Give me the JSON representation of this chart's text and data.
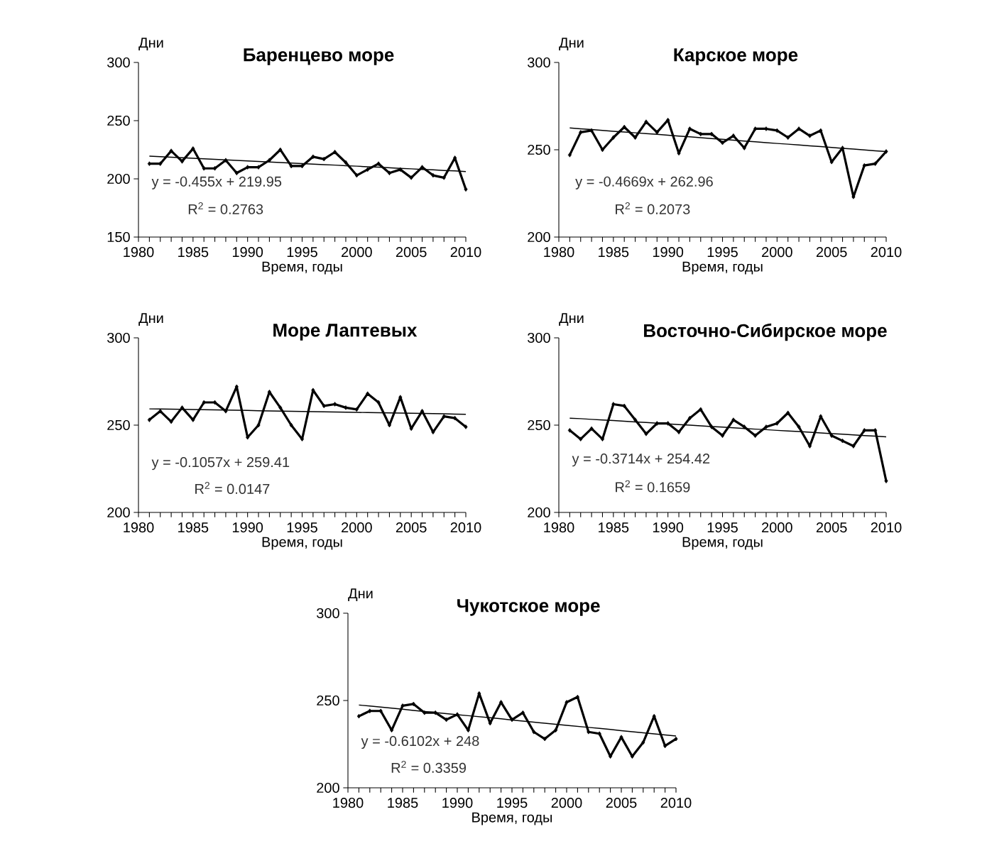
{
  "chart_data": [
    {
      "type": "line",
      "title": "Баренцево море",
      "ylabel": "Дни",
      "xlabel": "Время, годы",
      "marker": "diamond",
      "x": [
        1981,
        1982,
        1983,
        1984,
        1985,
        1986,
        1987,
        1988,
        1989,
        1990,
        1991,
        1992,
        1993,
        1994,
        1995,
        1996,
        1997,
        1998,
        1999,
        2000,
        2001,
        2002,
        2003,
        2004,
        2005,
        2006,
        2007,
        2008,
        2009,
        2010
      ],
      "series": [
        {
          "color": "#000000",
          "values": [
            213,
            213,
            224,
            215,
            226,
            209,
            209,
            216,
            205,
            210,
            210,
            216,
            225,
            211,
            211,
            219,
            217,
            223,
            214,
            203,
            208,
            213,
            205,
            208,
            201,
            210,
            203,
            201,
            218,
            191
          ]
        },
        {
          "type": "line",
          "color": "#000000",
          "marker": "none",
          "values": [
            219.5,
            219.0,
            218.6,
            218.1,
            217.7,
            217.2,
            216.8,
            216.3,
            215.9,
            215.4,
            214.9,
            214.5,
            214.0,
            213.6,
            213.1,
            212.7,
            212.2,
            211.8,
            211.3,
            210.9,
            210.4,
            210.0,
            209.5,
            209.0,
            208.6,
            208.1,
            207.7,
            207.2,
            206.8,
            206.3
          ]
        }
      ],
      "annotations": [
        "y = -0.455x  + 219.95",
        "R$^{2}$ = 0.2763"
      ],
      "xlim": [
        1980,
        2010
      ],
      "ylim": [
        150,
        300
      ],
      "yticks": [
        150,
        200,
        250,
        300
      ],
      "xticks": [
        1980,
        {
          "value": 1981,
          "label": null
        },
        {
          "value": 1982,
          "label": null
        },
        {
          "value": 1983,
          "label": null
        },
        {
          "value": 1984,
          "label": null
        },
        1985,
        {
          "value": 1986,
          "label": null
        },
        {
          "value": 1987,
          "label": null
        },
        {
          "value": 1988,
          "label": null
        },
        {
          "value": 1989,
          "label": null
        },
        1990,
        {
          "value": 1991,
          "label": null
        },
        {
          "value": 1992,
          "label": null
        },
        {
          "value": 1993,
          "label": null
        },
        {
          "value": 1994,
          "label": null
        },
        1995,
        {
          "value": 1996,
          "label": null
        },
        {
          "value": 1997,
          "label": null
        },
        {
          "value": 1998,
          "label": null
        },
        {
          "value": 1999,
          "label": null
        },
        2000,
        {
          "value": 2001,
          "label": null
        },
        {
          "value": 2002,
          "label": null
        },
        {
          "value": 2003,
          "label": null
        },
        {
          "value": 2004,
          "label": null
        },
        2005,
        {
          "value": 2006,
          "label": null
        },
        {
          "value": 2007,
          "label": null
        },
        {
          "value": 2008,
          "label": null
        },
        {
          "value": 2009,
          "label": null
        },
        2010
      ]
    },
    {
      "type": "line",
      "title": "Карское море",
      "ylabel": "Дни",
      "xlabel": "Время, годы",
      "marker": "diamond",
      "x": [
        1981,
        1982,
        1983,
        1984,
        1985,
        1986,
        1987,
        1988,
        1989,
        1990,
        1991,
        1992,
        1993,
        1994,
        1995,
        1996,
        1997,
        1998,
        1999,
        2000,
        2001,
        2002,
        2003,
        2004,
        2005,
        2006,
        2007,
        2008,
        2009,
        2010
      ],
      "series": [
        {
          "color": "#000000",
          "values": [
            247,
            260,
            261,
            250,
            257,
            263,
            257,
            266,
            260,
            267,
            248,
            262,
            259,
            259,
            254,
            258,
            251,
            262,
            262,
            261,
            257,
            262,
            258,
            261,
            243,
            251,
            223,
            241,
            242,
            249
          ]
        },
        {
          "type": "line",
          "color": "#000000",
          "marker": "none",
          "values": [
            262.5,
            262.0,
            261.6,
            261.1,
            260.6,
            260.2,
            259.7,
            259.2,
            258.8,
            258.3,
            257.8,
            257.4,
            256.9,
            256.4,
            256.0,
            255.5,
            255.0,
            254.6,
            254.1,
            253.6,
            253.2,
            252.7,
            252.2,
            251.8,
            251.3,
            250.8,
            250.4,
            249.9,
            249.4,
            249.0
          ]
        }
      ],
      "annotations": [
        "y = -0.4669x  + 262.96",
        "R$^{2}$ = 0.2073"
      ],
      "xlim": [
        1980,
        2010
      ],
      "ylim": [
        200,
        300
      ],
      "yticks": [
        200,
        250,
        300
      ],
      "xticks": [
        1980,
        {
          "value": 1981,
          "label": null
        },
        {
          "value": 1982,
          "label": null
        },
        {
          "value": 1983,
          "label": null
        },
        {
          "value": 1984,
          "label": null
        },
        1985,
        {
          "value": 1986,
          "label": null
        },
        {
          "value": 1987,
          "label": null
        },
        {
          "value": 1988,
          "label": null
        },
        {
          "value": 1989,
          "label": null
        },
        1990,
        {
          "value": 1991,
          "label": null
        },
        {
          "value": 1992,
          "label": null
        },
        {
          "value": 1993,
          "label": null
        },
        {
          "value": 1994,
          "label": null
        },
        1995,
        {
          "value": 1996,
          "label": null
        },
        {
          "value": 1997,
          "label": null
        },
        {
          "value": 1998,
          "label": null
        },
        {
          "value": 1999,
          "label": null
        },
        2000,
        {
          "value": 2001,
          "label": null
        },
        {
          "value": 2002,
          "label": null
        },
        {
          "value": 2003,
          "label": null
        },
        {
          "value": 2004,
          "label": null
        },
        2005,
        {
          "value": 2006,
          "label": null
        },
        {
          "value": 2007,
          "label": null
        },
        {
          "value": 2008,
          "label": null
        },
        {
          "value": 2009,
          "label": null
        },
        2010
      ]
    },
    {
      "type": "line",
      "title": "Море Лаптевых",
      "ylabel": "Дни",
      "xlabel": "Время, годы",
      "marker": "diamond",
      "x": [
        1981,
        1982,
        1983,
        1984,
        1985,
        1986,
        1987,
        1988,
        1989,
        1990,
        1991,
        1992,
        1993,
        1994,
        1995,
        1996,
        1997,
        1998,
        1999,
        2000,
        2001,
        2002,
        2003,
        2004,
        2005,
        2006,
        2007,
        2008,
        2009,
        2010
      ],
      "series": [
        {
          "color": "#000000",
          "values": [
            253,
            258,
            252,
            260,
            253,
            263,
            263,
            258,
            272,
            243,
            250,
            269,
            260,
            250,
            242,
            270,
            261,
            262,
            260,
            259,
            268,
            263,
            250,
            266,
            248,
            258,
            246,
            255,
            254,
            249
          ]
        },
        {
          "type": "line",
          "color": "#000000",
          "marker": "none",
          "values": [
            259.3,
            259.2,
            259.1,
            259.0,
            258.9,
            258.8,
            258.7,
            258.6,
            258.5,
            258.4,
            258.2,
            258.1,
            258.0,
            257.9,
            257.8,
            257.7,
            257.6,
            257.5,
            257.4,
            257.3,
            257.2,
            257.1,
            257.0,
            256.9,
            256.8,
            256.7,
            256.6,
            256.5,
            256.3,
            256.2
          ]
        }
      ],
      "annotations": [
        "y = -0.1057x  + 259.41",
        "R$^{2}$ = 0.0147"
      ],
      "xlim": [
        1980,
        2010
      ],
      "ylim": [
        200,
        300
      ],
      "yticks": [
        200,
        250,
        300
      ],
      "xticks": [
        1980,
        {
          "value": 1981,
          "label": null
        },
        {
          "value": 1982,
          "label": null
        },
        {
          "value": 1983,
          "label": null
        },
        {
          "value": 1984,
          "label": null
        },
        1985,
        {
          "value": 1986,
          "label": null
        },
        {
          "value": 1987,
          "label": null
        },
        {
          "value": 1988,
          "label": null
        },
        {
          "value": 1989,
          "label": null
        },
        1990,
        {
          "value": 1991,
          "label": null
        },
        {
          "value": 1992,
          "label": null
        },
        {
          "value": 1993,
          "label": null
        },
        {
          "value": 1994,
          "label": null
        },
        1995,
        {
          "value": 1996,
          "label": null
        },
        {
          "value": 1997,
          "label": null
        },
        {
          "value": 1998,
          "label": null
        },
        {
          "value": 1999,
          "label": null
        },
        2000,
        {
          "value": 2001,
          "label": null
        },
        {
          "value": 2002,
          "label": null
        },
        {
          "value": 2003,
          "label": null
        },
        {
          "value": 2004,
          "label": null
        },
        2005,
        {
          "value": 2006,
          "label": null
        },
        {
          "value": 2007,
          "label": null
        },
        {
          "value": 2008,
          "label": null
        },
        {
          "value": 2009,
          "label": null
        },
        2010
      ]
    },
    {
      "type": "line",
      "title": "Восточно-Сибирское море",
      "ylabel": "Дни",
      "xlabel": "Время, годы",
      "marker": "diamond",
      "x": [
        1981,
        1982,
        1983,
        1984,
        1985,
        1986,
        1987,
        1988,
        1989,
        1990,
        1991,
        1992,
        1993,
        1994,
        1995,
        1996,
        1997,
        1998,
        1999,
        2000,
        2001,
        2002,
        2003,
        2004,
        2005,
        2006,
        2007,
        2008,
        2009,
        2010
      ],
      "series": [
        {
          "color": "#000000",
          "values": [
            247,
            242,
            248,
            242,
            262,
            261,
            253,
            245,
            251,
            251,
            246,
            254,
            259,
            249,
            244,
            253,
            249,
            244,
            249,
            251,
            257,
            249,
            238,
            255,
            244,
            241,
            238,
            247,
            247,
            218
          ]
        },
        {
          "type": "line",
          "color": "#000000",
          "marker": "none",
          "values": [
            254.0,
            253.7,
            253.3,
            252.9,
            252.6,
            252.2,
            251.8,
            251.5,
            251.1,
            250.7,
            250.3,
            250.0,
            249.6,
            249.2,
            248.9,
            248.5,
            248.1,
            247.7,
            247.4,
            247.0,
            246.6,
            246.3,
            245.9,
            245.5,
            245.1,
            244.8,
            244.4,
            244.0,
            243.7,
            243.3
          ]
        }
      ],
      "annotations": [
        "y = -0.3714x  + 254.42",
        "R$^{2}$ = 0.1659"
      ],
      "xlim": [
        1980,
        2010
      ],
      "ylim": [
        200,
        300
      ],
      "yticks": [
        200,
        250,
        300
      ],
      "xticks": [
        1980,
        {
          "value": 1981,
          "label": null
        },
        {
          "value": 1982,
          "label": null
        },
        {
          "value": 1983,
          "label": null
        },
        {
          "value": 1984,
          "label": null
        },
        1985,
        {
          "value": 1986,
          "label": null
        },
        {
          "value": 1987,
          "label": null
        },
        {
          "value": 1988,
          "label": null
        },
        {
          "value": 1989,
          "label": null
        },
        1990,
        {
          "value": 1991,
          "label": null
        },
        {
          "value": 1992,
          "label": null
        },
        {
          "value": 1993,
          "label": null
        },
        {
          "value": 1994,
          "label": null
        },
        1995,
        {
          "value": 1996,
          "label": null
        },
        {
          "value": 1997,
          "label": null
        },
        {
          "value": 1998,
          "label": null
        },
        {
          "value": 1999,
          "label": null
        },
        2000,
        {
          "value": 2001,
          "label": null
        },
        {
          "value": 2002,
          "label": null
        },
        {
          "value": 2003,
          "label": null
        },
        {
          "value": 2004,
          "label": null
        },
        2005,
        {
          "value": 2006,
          "label": null
        },
        {
          "value": 2007,
          "label": null
        },
        {
          "value": 2008,
          "label": null
        },
        {
          "value": 2009,
          "label": null
        },
        2010
      ]
    },
    {
      "type": "line",
      "title": "Чукотское море",
      "ylabel": "Дни",
      "xlabel": "Время, годы",
      "marker": "diamond",
      "x": [
        1981,
        1982,
        1983,
        1984,
        1985,
        1986,
        1987,
        1988,
        1989,
        1990,
        1991,
        1992,
        1993,
        1994,
        1995,
        1996,
        1997,
        1998,
        1999,
        2000,
        2001,
        2002,
        2003,
        2004,
        2005,
        2006,
        2007,
        2008,
        2009,
        2010
      ],
      "series": [
        {
          "color": "#000000",
          "values": [
            241,
            244,
            244,
            233,
            247,
            248,
            243,
            243,
            239,
            242,
            233,
            254,
            237,
            249,
            239,
            243,
            232,
            228,
            233,
            249,
            252,
            232,
            231,
            218,
            229,
            218,
            226,
            241,
            224,
            228
          ]
        },
        {
          "type": "line",
          "color": "#000000",
          "marker": "none",
          "values": [
            247.4,
            246.8,
            246.2,
            245.6,
            245.0,
            244.3,
            243.7,
            243.1,
            242.5,
            241.9,
            241.3,
            240.7,
            240.1,
            239.5,
            238.8,
            238.2,
            237.6,
            237.0,
            236.4,
            235.8,
            235.2,
            234.6,
            234.0,
            233.4,
            232.7,
            232.1,
            231.5,
            230.9,
            230.3,
            229.7
          ]
        }
      ],
      "annotations": [
        "y = -0.6102x  + 248",
        "R$^{2}$ = 0.3359"
      ],
      "xlim": [
        1980,
        2010
      ],
      "ylim": [
        200,
        300
      ],
      "yticks": [
        200,
        250,
        300
      ],
      "xticks": [
        1980,
        {
          "value": 1981,
          "label": null
        },
        {
          "value": 1982,
          "label": null
        },
        {
          "value": 1983,
          "label": null
        },
        {
          "value": 1984,
          "label": null
        },
        1985,
        {
          "value": 1986,
          "label": null
        },
        {
          "value": 1987,
          "label": null
        },
        {
          "value": 1988,
          "label": null
        },
        {
          "value": 1989,
          "label": null
        },
        1990,
        {
          "value": 1991,
          "label": null
        },
        {
          "value": 1992,
          "label": null
        },
        {
          "value": 1993,
          "label": null
        },
        {
          "value": 1994,
          "label": null
        },
        1995,
        {
          "value": 1996,
          "label": null
        },
        {
          "value": 1997,
          "label": null
        },
        {
          "value": 1998,
          "label": null
        },
        {
          "value": 1999,
          "label": null
        },
        2000,
        {
          "value": 2001,
          "label": null
        },
        {
          "value": 2002,
          "label": null
        },
        {
          "value": 2003,
          "label": null
        },
        {
          "value": 2004,
          "label": null
        },
        2005,
        {
          "value": 2006,
          "label": null
        },
        {
          "value": 2007,
          "label": null
        },
        {
          "value": 2008,
          "label": null
        },
        {
          "value": 2009,
          "label": null
        },
        2010
      ]
    }
  ]
}
